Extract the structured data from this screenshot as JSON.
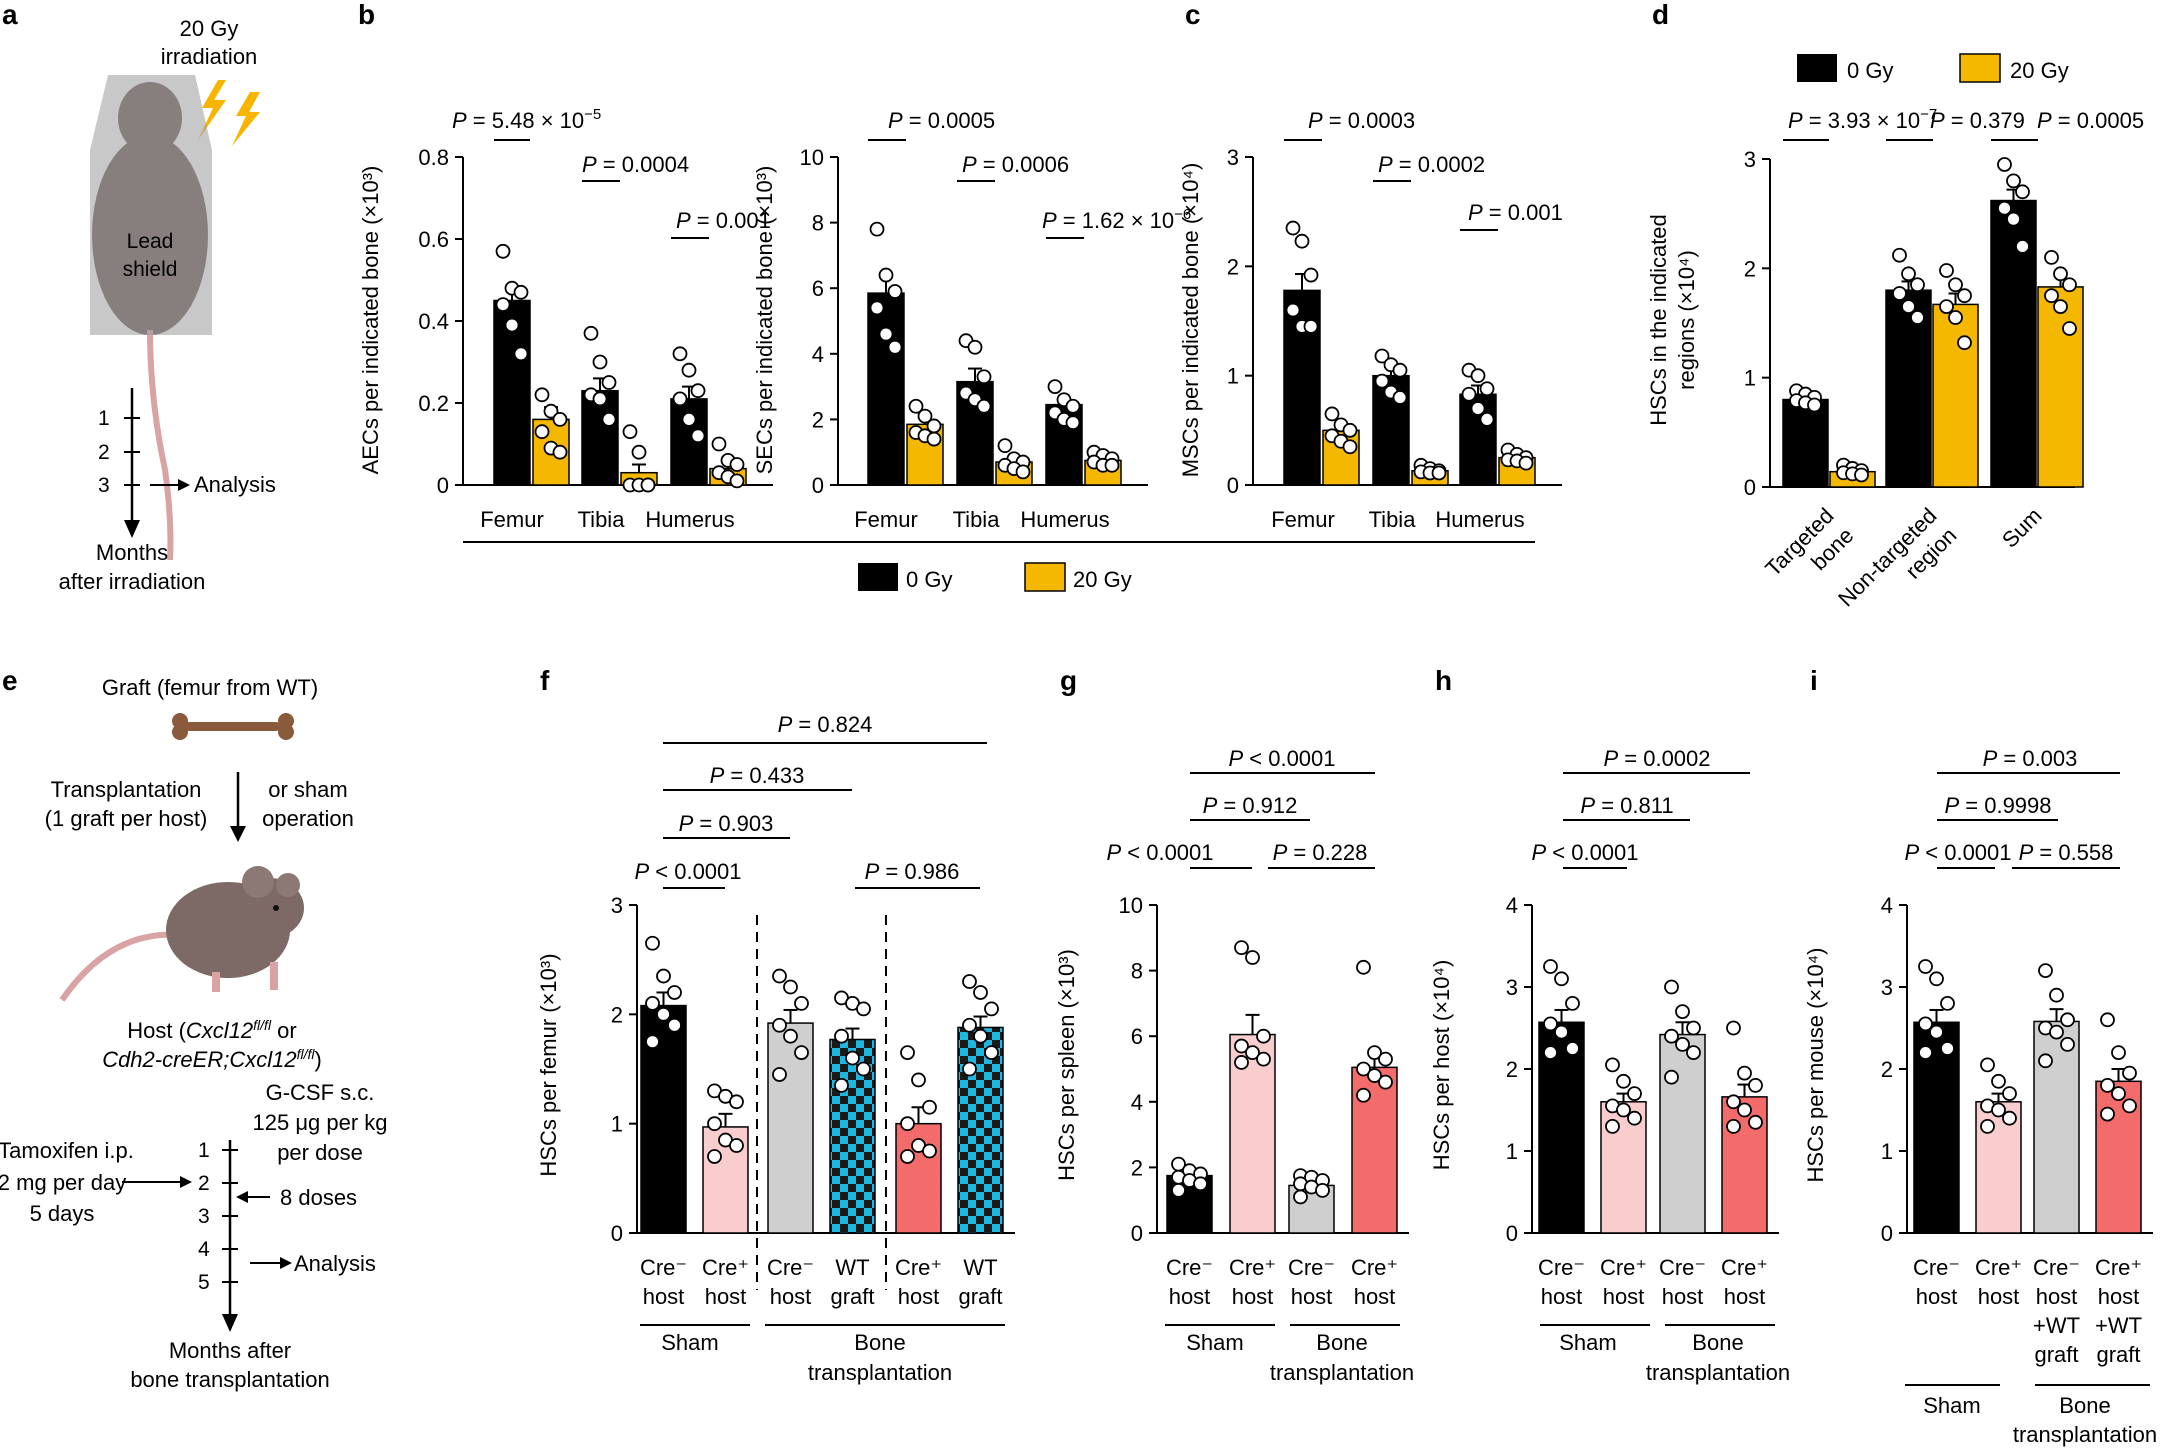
{
  "colors": {
    "black": "#000000",
    "yellow": "#f5b800",
    "grey": "#cfcfcf",
    "pink": "#f9cdcd",
    "salmon": "#f36b6b",
    "cyan": "#1fb6e0",
    "bone": "#8a5a3c",
    "mouse": "#7d6a66"
  },
  "legend": {
    "label_0": "0 Gy",
    "label_20": "20 Gy"
  },
  "panel_a": {
    "letter": "a",
    "irr_line1": "20 Gy",
    "irr_line2": "irradiation",
    "shield_line1": "Lead",
    "shield_line2": "shield",
    "timeline": [
      "1",
      "2",
      "3"
    ],
    "analysis": "Analysis",
    "months_line1": "Months",
    "months_line2": "after irradiation"
  },
  "panel_e": {
    "letter": "e",
    "graft": "Graft (femur from WT)",
    "transplant_line1": "Transplantation",
    "transplant_line2": "(1 graft per host)",
    "sham_line1": "or sham",
    "sham_line2": "operation",
    "host_line1a": "Host (",
    "host_line1b": "Cxcl12",
    "host_line1c": "fl/fl",
    "host_line1d": " or",
    "host_line2a": "Cdh2-creER;Cxcl12",
    "host_line2b": "fl/fl",
    "host_line2c": ")",
    "tamox_line1": "Tamoxifen i.p.",
    "tamox_line2": "2 mg per day",
    "tamox_line3": "5 days",
    "gcsf_line1": "G-CSF s.c.",
    "gcsf_line2": "125 μg per kg",
    "gcsf_line3": "per dose",
    "gcsf_line4": "8 doses",
    "timeline": [
      "1",
      "2",
      "3",
      "4",
      "5"
    ],
    "analysis": "Analysis",
    "months_line1": "Months after",
    "months_line2": "bone transplantation"
  },
  "chart_data": [
    {
      "panel": "b",
      "type": "bar",
      "title": "",
      "ylabel": "AECs per indicated bone (×10³)",
      "ylim": [
        0,
        0.8
      ],
      "yticks": [
        "0",
        "0.2",
        "0.4",
        "0.6",
        "0.8"
      ],
      "categories": [
        "Femur",
        "Tibia",
        "Humerus"
      ],
      "series": [
        {
          "name": "0 Gy",
          "values": [
            0.45,
            0.23,
            0.21
          ],
          "errors": [
            0.03,
            0.03,
            0.03
          ]
        },
        {
          "name": "20 Gy",
          "values": [
            0.16,
            0.03,
            0.04
          ],
          "errors": [
            0.03,
            0.02,
            0.02
          ]
        }
      ],
      "points": [
        [
          0.57,
          0.48,
          0.47,
          0.44,
          0.39,
          0.32
        ],
        [
          0.22,
          0.18,
          0.16,
          0.13,
          0.09,
          0.08
        ],
        [
          0.37,
          0.3,
          0.25,
          0.22,
          0.21,
          0.16
        ],
        [
          0.13,
          0.08,
          0.0,
          0.0,
          0.0,
          0.0
        ],
        [
          0.32,
          0.28,
          0.23,
          0.21,
          0.16,
          0.12
        ],
        [
          0.1,
          0.06,
          0.05,
          0.03,
          0.02,
          0.01
        ]
      ],
      "pvalues": [
        "5.48 × 10",
        "0.0004",
        "0.001"
      ],
      "pexp": [
        "−5",
        "",
        ""
      ]
    },
    {
      "panel": "b2",
      "type": "bar",
      "ylabel": "SECs per indicated bone (×10³)",
      "ylim": [
        0,
        10
      ],
      "yticks": [
        "0",
        "2",
        "4",
        "6",
        "8",
        "10"
      ],
      "categories": [
        "Femur",
        "Tibia",
        "Humerus"
      ],
      "series": [
        {
          "name": "0 Gy",
          "values": [
            5.85,
            3.15,
            2.45
          ],
          "errors": [
            0.6,
            0.4,
            0.2
          ]
        },
        {
          "name": "20 Gy",
          "values": [
            1.85,
            0.7,
            0.75
          ],
          "errors": [
            0.2,
            0.1,
            0.1
          ]
        }
      ],
      "points": [
        [
          7.8,
          6.4,
          5.9,
          5.4,
          4.6,
          4.2
        ],
        [
          2.4,
          2.1,
          1.8,
          1.6,
          1.5,
          1.4
        ],
        [
          4.4,
          4.2,
          3.3,
          2.8,
          2.6,
          2.4
        ],
        [
          1.2,
          0.8,
          0.7,
          0.6,
          0.5,
          0.4
        ],
        [
          3.0,
          2.6,
          2.4,
          2.2,
          2.0,
          1.9
        ],
        [
          1.0,
          0.9,
          0.8,
          0.7,
          0.6,
          0.6
        ]
      ],
      "pvalues": [
        "0.0005",
        "0.0006",
        "1.62 × 10"
      ],
      "pexp": [
        "",
        "",
        "−6"
      ]
    },
    {
      "panel": "c",
      "type": "bar",
      "ylabel": "MSCs per indicated bone (×10⁴)",
      "ylim": [
        0,
        3
      ],
      "yticks": [
        "0",
        "1",
        "2",
        "3"
      ],
      "categories": [
        "Femur",
        "Tibia",
        "Humerus"
      ],
      "series": [
        {
          "name": "0 Gy",
          "values": [
            1.78,
            1.0,
            0.83
          ],
          "errors": [
            0.15,
            0.08,
            0.08
          ]
        },
        {
          "name": "20 Gy",
          "values": [
            0.5,
            0.13,
            0.25
          ],
          "errors": [
            0.05,
            0.02,
            0.03
          ]
        }
      ],
      "points": [
        [
          2.35,
          2.23,
          1.92,
          1.6,
          1.45,
          1.45
        ],
        [
          0.65,
          0.55,
          0.5,
          0.45,
          0.4,
          0.35
        ],
        [
          1.18,
          1.1,
          1.05,
          0.95,
          0.85,
          0.8
        ],
        [
          0.18,
          0.15,
          0.13,
          0.12,
          0.11,
          0.11
        ],
        [
          1.05,
          1.0,
          0.88,
          0.83,
          0.7,
          0.6
        ],
        [
          0.32,
          0.28,
          0.25,
          0.23,
          0.22,
          0.2
        ]
      ],
      "pvalues": [
        "0.0003",
        "0.0002",
        "0.001"
      ],
      "pexp": [
        "",
        "",
        ""
      ]
    },
    {
      "panel": "d",
      "type": "bar",
      "ylabel_line1": "HSCs in the indicated",
      "ylabel_line2": "regions (×10⁴)",
      "ylim": [
        0,
        3
      ],
      "yticks": [
        "0",
        "1",
        "2",
        "3"
      ],
      "categories": [
        "Targeted bone",
        "Non-targeted region",
        "Sum"
      ],
      "xlabels": [
        [
          "Targeted",
          "bone"
        ],
        [
          "Non-targeted",
          "region"
        ],
        [
          "Sum"
        ]
      ],
      "series": [
        {
          "name": "0 Gy",
          "values": [
            0.8,
            1.8,
            2.62
          ],
          "errors": [
            0.04,
            0.08,
            0.1
          ]
        },
        {
          "name": "20 Gy",
          "values": [
            0.14,
            1.67,
            1.83
          ],
          "errors": [
            0.02,
            0.1,
            0.1
          ]
        }
      ],
      "points": [
        [
          0.88,
          0.85,
          0.82,
          0.79,
          0.77,
          0.75
        ],
        [
          0.2,
          0.17,
          0.15,
          0.13,
          0.12,
          0.11
        ],
        [
          2.12,
          1.95,
          1.85,
          1.77,
          1.65,
          1.55
        ],
        [
          1.98,
          1.85,
          1.75,
          1.65,
          1.55,
          1.32
        ],
        [
          2.95,
          2.8,
          2.7,
          2.55,
          2.45,
          2.2
        ],
        [
          2.1,
          1.95,
          1.85,
          1.75,
          1.65,
          1.45
        ]
      ],
      "pvalues": [
        "3.93 × 10",
        "0.379",
        "0.0005"
      ],
      "pexp": [
        "−7",
        "",
        ""
      ]
    },
    {
      "panel": "f",
      "type": "bar",
      "ylabel": "HSCs per femur (×10³)",
      "ylim": [
        0,
        3
      ],
      "yticks": [
        "0",
        "1",
        "2",
        "3"
      ],
      "xlabels": [
        [
          "Cre⁻",
          "host"
        ],
        [
          "Cre⁺",
          "host"
        ],
        [
          "Cre⁻",
          "host"
        ],
        [
          "WT",
          "graft"
        ],
        [
          "Cre⁺",
          "host"
        ],
        [
          "WT",
          "graft"
        ]
      ],
      "values": [
        2.08,
        0.97,
        1.92,
        1.77,
        1.0,
        1.88
      ],
      "errors": [
        0.12,
        0.12,
        0.12,
        0.1,
        0.15,
        0.1
      ],
      "points": [
        [
          2.65,
          2.35,
          2.2,
          2.1,
          2.0,
          1.9,
          1.75
        ],
        [
          1.3,
          1.25,
          1.2,
          1.0,
          0.85,
          0.8,
          0.7
        ],
        [
          2.35,
          2.25,
          2.1,
          1.9,
          1.8,
          1.65,
          1.45
        ],
        [
          2.15,
          2.1,
          2.05,
          1.8,
          1.6,
          1.5,
          1.35
        ],
        [
          1.65,
          1.4,
          1.15,
          1.0,
          0.8,
          0.75,
          0.7
        ],
        [
          2.3,
          2.2,
          2.05,
          1.9,
          1.8,
          1.65,
          1.5
        ]
      ],
      "pvalues": [
        "0.824",
        "0.433",
        "0.903",
        "< 0.0001",
        "0.986"
      ],
      "groups": [
        "Sham",
        "Bone",
        "transplantation"
      ]
    },
    {
      "panel": "g",
      "type": "bar",
      "ylabel": "HSCs per spleen (×10³)",
      "ylim": [
        0,
        10
      ],
      "yticks": [
        "0",
        "2",
        "4",
        "6",
        "8",
        "10"
      ],
      "xlabels": [
        [
          "Cre⁻",
          "host"
        ],
        [
          "Cre⁺",
          "host"
        ],
        [
          "Cre⁻",
          "host"
        ],
        [
          "Cre⁺",
          "host"
        ]
      ],
      "values": [
        1.75,
        6.05,
        1.45,
        5.05
      ],
      "errors": [
        0.15,
        0.6,
        0.12,
        0.45
      ],
      "points": [
        [
          2.1,
          1.9,
          1.8,
          1.7,
          1.6,
          1.5,
          1.3
        ],
        [
          8.7,
          8.4,
          6.0,
          5.7,
          5.5,
          5.3,
          5.2
        ],
        [
          1.75,
          1.7,
          1.6,
          1.5,
          1.4,
          1.3,
          1.1
        ],
        [
          8.1,
          5.5,
          5.3,
          5.0,
          4.8,
          4.6,
          4.2
        ]
      ],
      "pvalues": [
        "< 0.0001",
        "0.912",
        "< 0.0001",
        "0.228"
      ],
      "groups": [
        "Sham",
        "Bone",
        "transplantation"
      ]
    },
    {
      "panel": "h",
      "type": "bar",
      "ylabel": "HSCs per host (×10⁴)",
      "ylim": [
        0,
        4
      ],
      "yticks": [
        "0",
        "1",
        "2",
        "3",
        "4"
      ],
      "xlabels": [
        [
          "Cre⁻",
          "host"
        ],
        [
          "Cre⁺",
          "host"
        ],
        [
          "Cre⁻",
          "host"
        ],
        [
          "Cre⁺",
          "host"
        ]
      ],
      "values": [
        2.57,
        1.6,
        2.42,
        1.66
      ],
      "errors": [
        0.15,
        0.1,
        0.15,
        0.15
      ],
      "points": [
        [
          3.25,
          3.1,
          2.8,
          2.55,
          2.45,
          2.25,
          2.2
        ],
        [
          2.05,
          1.85,
          1.7,
          1.55,
          1.5,
          1.4,
          1.3
        ],
        [
          3.0,
          2.7,
          2.5,
          2.4,
          2.3,
          2.2,
          1.9
        ],
        [
          2.5,
          1.95,
          1.8,
          1.6,
          1.5,
          1.35,
          1.3
        ]
      ],
      "pvalues": [
        "0.0002",
        "0.811",
        "< 0.0001"
      ],
      "groups": [
        "Sham",
        "Bone",
        "transplantation"
      ]
    },
    {
      "panel": "i",
      "type": "bar",
      "ylabel": "HSCs per mouse (×10⁴)",
      "ylim": [
        0,
        4
      ],
      "yticks": [
        "0",
        "1",
        "2",
        "3",
        "4"
      ],
      "xlabels": [
        [
          "Cre⁻",
          "host"
        ],
        [
          "Cre⁺",
          "host"
        ],
        [
          "Cre⁻",
          "host",
          "+WT",
          "graft"
        ],
        [
          "Cre⁺",
          "host",
          "+WT",
          "graft"
        ]
      ],
      "values": [
        2.57,
        1.6,
        2.58,
        1.85
      ],
      "errors": [
        0.15,
        0.1,
        0.15,
        0.15
      ],
      "points": [
        [
          3.25,
          3.1,
          2.8,
          2.55,
          2.45,
          2.25,
          2.2
        ],
        [
          2.05,
          1.85,
          1.7,
          1.55,
          1.5,
          1.4,
          1.3
        ],
        [
          3.2,
          2.9,
          2.6,
          2.5,
          2.45,
          2.3,
          2.1
        ],
        [
          2.6,
          2.2,
          1.95,
          1.8,
          1.7,
          1.55,
          1.45
        ]
      ],
      "pvalues": [
        "0.003",
        "0.9998",
        "< 0.0001",
        "0.558"
      ],
      "groups": [
        "Sham",
        "Bone",
        "transplantation"
      ]
    }
  ],
  "letters": {
    "b": "b",
    "c": "c",
    "d": "d",
    "f": "f",
    "g": "g",
    "h": "h",
    "i": "i"
  }
}
